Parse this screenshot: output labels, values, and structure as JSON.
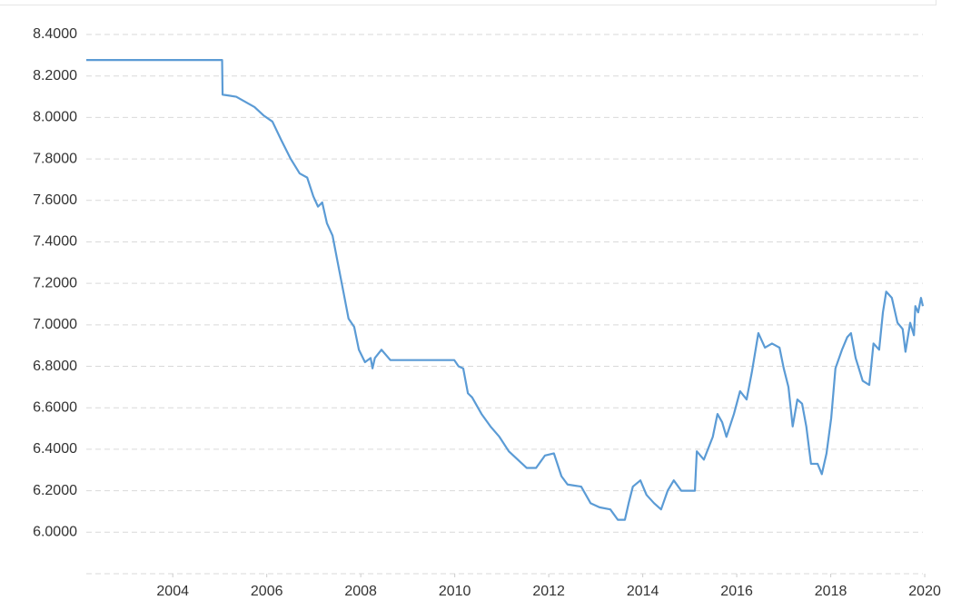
{
  "chart_data": {
    "type": "line",
    "color": "#5b9bd5",
    "grid": true,
    "x": [
      2002.16,
      2005.05,
      2005.06,
      2005.35,
      2005.74,
      2005.93,
      2006.12,
      2006.31,
      2006.51,
      2006.7,
      2006.86,
      2006.99,
      2007.09,
      2007.18,
      2007.28,
      2007.4,
      2007.51,
      2007.63,
      2007.74,
      2007.86,
      2007.96,
      2008.09,
      2008.21,
      2008.25,
      2008.3,
      2008.44,
      2008.63,
      2009.02,
      2009.99,
      2010.08,
      2010.18,
      2010.28,
      2010.37,
      2010.57,
      2010.76,
      2010.95,
      2011.15,
      2011.34,
      2011.53,
      2011.73,
      2011.92,
      2012.11,
      2012.27,
      2012.4,
      2012.69,
      2012.89,
      2013.08,
      2013.31,
      2013.47,
      2013.62,
      2013.7,
      2013.79,
      2013.95,
      2014.08,
      2014.24,
      2014.39,
      2014.53,
      2014.66,
      2014.82,
      2015.11,
      2015.15,
      2015.3,
      2015.49,
      2015.59,
      2015.69,
      2015.78,
      2015.94,
      2016.07,
      2016.21,
      2016.32,
      2016.46,
      2016.6,
      2016.75,
      2016.91,
      2017.0,
      2017.1,
      2017.19,
      2017.29,
      2017.39,
      2017.48,
      2017.58,
      2017.72,
      2017.81,
      2017.91,
      2018.01,
      2018.1,
      2018.24,
      2018.35,
      2018.43,
      2018.53,
      2018.68,
      2018.82,
      2018.91,
      2019.03,
      2019.11,
      2019.18,
      2019.3,
      2019.42,
      2019.53,
      2019.59,
      2019.69,
      2019.77,
      2019.8,
      2019.86,
      2019.92,
      2019.96
    ],
    "values": [
      8.277,
      8.277,
      8.11,
      8.1,
      8.05,
      8.01,
      7.98,
      7.89,
      7.8,
      7.73,
      7.71,
      7.62,
      7.57,
      7.59,
      7.49,
      7.43,
      7.3,
      7.16,
      7.03,
      6.99,
      6.88,
      6.82,
      6.84,
      6.79,
      6.84,
      6.88,
      6.83,
      6.83,
      6.83,
      6.8,
      6.79,
      6.67,
      6.65,
      6.57,
      6.51,
      6.46,
      6.39,
      6.35,
      6.31,
      6.31,
      6.37,
      6.38,
      6.27,
      6.23,
      6.22,
      6.14,
      6.12,
      6.11,
      6.06,
      6.06,
      6.14,
      6.22,
      6.25,
      6.18,
      6.14,
      6.11,
      6.2,
      6.25,
      6.2,
      6.2,
      6.39,
      6.35,
      6.46,
      6.57,
      6.53,
      6.46,
      6.57,
      6.68,
      6.64,
      6.77,
      6.96,
      6.89,
      6.91,
      6.89,
      6.79,
      6.7,
      6.51,
      6.64,
      6.62,
      6.51,
      6.33,
      6.33,
      6.28,
      6.38,
      6.55,
      6.79,
      6.88,
      6.94,
      6.96,
      6.84,
      6.73,
      6.71,
      6.91,
      6.88,
      7.06,
      7.16,
      7.13,
      7.01,
      6.98,
      6.87,
      7.01,
      6.95,
      7.09,
      7.06,
      7.13,
      7.09
    ],
    "xlim": [
      2002.16,
      2019.96
    ],
    "xticks": [
      2004,
      2006,
      2008,
      2010,
      2012,
      2014,
      2016,
      2018,
      2020
    ],
    "ylim": [
      5.8,
      8.4
    ],
    "yticks": [
      {
        "value": 6.0,
        "label": "6.0000"
      },
      {
        "value": 6.2,
        "label": "6.2000"
      },
      {
        "value": 6.4,
        "label": "6.4000"
      },
      {
        "value": 6.6,
        "label": "6.6000"
      },
      {
        "value": 6.8,
        "label": "6.8000"
      },
      {
        "value": 7.0,
        "label": "7.0000"
      },
      {
        "value": 7.2,
        "label": "7.2000"
      },
      {
        "value": 7.4,
        "label": "7.4000"
      },
      {
        "value": 7.6,
        "label": "7.6000"
      },
      {
        "value": 7.8,
        "label": "7.8000"
      },
      {
        "value": 8.0,
        "label": "8.0000"
      },
      {
        "value": 8.2,
        "label": "8.2000"
      },
      {
        "value": 8.4,
        "label": "8.4000"
      }
    ]
  }
}
